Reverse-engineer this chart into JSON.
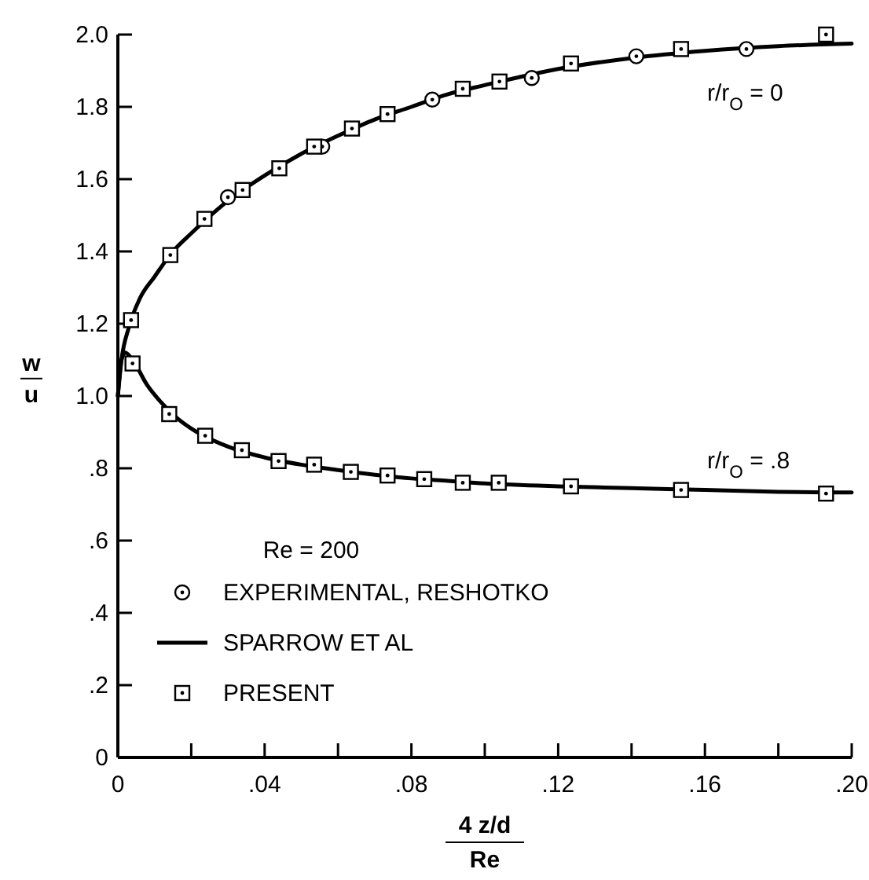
{
  "chart_data": {
    "type": "line",
    "xlabel": "4 z/d\nRe",
    "ylabel": "w\nu",
    "legend_title": "Re = 200",
    "xlim": [
      0,
      0.2
    ],
    "ylim": [
      0,
      2.0
    ],
    "xticks": [
      {
        "value": 0,
        "label": "0"
      },
      {
        "value": 0.02,
        "label": null
      },
      {
        "value": 0.04,
        "label": ".04"
      },
      {
        "value": 0.06,
        "label": null
      },
      {
        "value": 0.08,
        "label": ".08"
      },
      {
        "value": 0.1,
        "label": null
      },
      {
        "value": 0.12,
        "label": ".12"
      },
      {
        "value": 0.14,
        "label": null
      },
      {
        "value": 0.16,
        "label": ".16"
      },
      {
        "value": 0.18,
        "label": null
      },
      {
        "value": 0.2,
        "label": ".20"
      }
    ],
    "yticks": [
      {
        "value": 0,
        "label": "0"
      },
      {
        "value": 0.2,
        "label": ".2"
      },
      {
        "value": 0.4,
        "label": ".4"
      },
      {
        "value": 0.6,
        "label": ".6"
      },
      {
        "value": 0.8,
        "label": ".8"
      },
      {
        "value": 1.0,
        "label": "1.0"
      },
      {
        "value": 1.2,
        "label": "1.2"
      },
      {
        "value": 1.4,
        "label": "1.4"
      },
      {
        "value": 1.6,
        "label": "1.6"
      },
      {
        "value": 1.8,
        "label": "1.8"
      },
      {
        "value": 2.0,
        "label": "2.0"
      }
    ],
    "grid": false,
    "legend": "bottom left",
    "annotations": [
      "r/r$_{O}$ = 0",
      "r/r$_{O}$ = .8"
    ],
    "series": [
      {
        "name": "EXPERIMENTAL, RESHOTKO",
        "type": "scatter",
        "marker": "circle",
        "color": "#000000",
        "x": [
          0.03,
          0.0557,
          0.0857,
          0.1128,
          0.1413,
          0.1713
        ],
        "values": [
          1.55,
          1.69,
          1.82,
          1.88,
          1.94,
          1.96
        ]
      },
      {
        "name": "SPARROW ET AL",
        "marker": "none",
        "line_style": "solid",
        "color": "#000000",
        "x": [
          0,
          0.001,
          0.003,
          0.006,
          0.01,
          0.015,
          0.02,
          0.03,
          0.04,
          0.05,
          0.06,
          0.07,
          0.08,
          0.09,
          0.1,
          0.12,
          0.14,
          0.16,
          0.18,
          0.2
        ],
        "values": [
          1.0,
          1.1,
          1.19,
          1.27,
          1.33,
          1.4,
          1.45,
          1.54,
          1.61,
          1.67,
          1.72,
          1.765,
          1.8,
          1.835,
          1.86,
          1.905,
          1.935,
          1.955,
          1.968,
          1.975
        ]
      },
      {
        "marker": "none",
        "line_style": "solid",
        "color": "#000000",
        "x": [
          0,
          0.001,
          0.002,
          0.004,
          0.008,
          0.012,
          0.016,
          0.02,
          0.03,
          0.04,
          0.05,
          0.06,
          0.07,
          0.08,
          0.09,
          0.1,
          0.12,
          0.14,
          0.16,
          0.18,
          0.2
        ],
        "values": [
          1.0,
          1.1,
          1.12,
          1.1,
          1.03,
          0.98,
          0.94,
          0.91,
          0.86,
          0.83,
          0.81,
          0.795,
          0.782,
          0.772,
          0.765,
          0.758,
          0.75,
          0.745,
          0.74,
          0.735,
          0.733
        ]
      },
      {
        "name": "PRESENT",
        "type": "scatter",
        "marker": "square",
        "color": "#000000",
        "x": [
          0.0036,
          0.0143,
          0.0236,
          0.034,
          0.044,
          0.0535,
          0.0638,
          0.0735,
          0.094,
          0.104,
          0.1235,
          0.1535,
          0.193,
          0.004,
          0.014,
          0.0238,
          0.0338,
          0.0438,
          0.0535,
          0.0635,
          0.0735,
          0.0835,
          0.094,
          0.1038,
          0.1235,
          0.1535,
          0.193
        ],
        "values": [
          1.21,
          1.39,
          1.49,
          1.57,
          1.63,
          1.69,
          1.74,
          1.78,
          1.85,
          1.87,
          1.92,
          1.96,
          2.0,
          1.09,
          0.95,
          0.89,
          0.85,
          0.82,
          0.81,
          0.79,
          0.78,
          0.77,
          0.76,
          0.76,
          0.75,
          0.74,
          0.73
        ]
      }
    ]
  }
}
